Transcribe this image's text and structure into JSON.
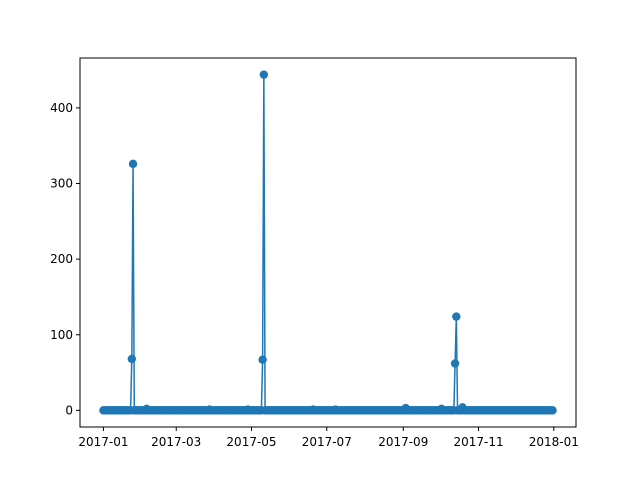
{
  "chart_data": {
    "type": "line",
    "title": "",
    "xlabel": "",
    "ylabel": "",
    "marker": "circle",
    "grid": false,
    "legend": "none",
    "colors": {
      "series": "#1f77b4",
      "axes": "#000000",
      "background": "#ffffff"
    },
    "xlim": [
      "2016-12-13",
      "2018-01-19"
    ],
    "ylim": [
      -22,
      466
    ],
    "x_ticks": [
      {
        "value": "2017-01-01",
        "label": "2017-01"
      },
      {
        "value": "2017-03-01",
        "label": "2017-03"
      },
      {
        "value": "2017-05-01",
        "label": "2017-05"
      },
      {
        "value": "2017-07-01",
        "label": "2017-07"
      },
      {
        "value": "2017-09-01",
        "label": "2017-09"
      },
      {
        "value": "2017-11-01",
        "label": "2017-11"
      },
      {
        "value": "2018-01-01",
        "label": "2018-01"
      }
    ],
    "y_ticks": [
      {
        "value": 0,
        "label": "0"
      },
      {
        "value": 100,
        "label": "100"
      },
      {
        "value": 200,
        "label": "200"
      },
      {
        "value": 300,
        "label": "300"
      },
      {
        "value": 400,
        "label": "400"
      }
    ],
    "series": [
      {
        "baseline": 0,
        "x_start": "2017-01-01",
        "x_end": "2017-12-31",
        "points": [
          {
            "x": "2017-01-01",
            "y": 0
          },
          {
            "x": "2017-01-23",
            "y": 0
          },
          {
            "x": "2017-01-24",
            "y": 68
          },
          {
            "x": "2017-01-25",
            "y": 326
          },
          {
            "x": "2017-01-26",
            "y": 0
          },
          {
            "x": "2017-02-05",
            "y": 2
          },
          {
            "x": "2017-03-28",
            "y": 1
          },
          {
            "x": "2017-04-28",
            "y": 1
          },
          {
            "x": "2017-05-09",
            "y": 0
          },
          {
            "x": "2017-05-10",
            "y": 67
          },
          {
            "x": "2017-05-11",
            "y": 444
          },
          {
            "x": "2017-05-12",
            "y": 0
          },
          {
            "x": "2017-06-20",
            "y": 1
          },
          {
            "x": "2017-07-08",
            "y": 1
          },
          {
            "x": "2017-09-03",
            "y": 3
          },
          {
            "x": "2017-10-02",
            "y": 2
          },
          {
            "x": "2017-10-12",
            "y": 0
          },
          {
            "x": "2017-10-13",
            "y": 62
          },
          {
            "x": "2017-10-14",
            "y": 124
          },
          {
            "x": "2017-10-15",
            "y": 0
          },
          {
            "x": "2017-10-19",
            "y": 4
          },
          {
            "x": "2017-12-31",
            "y": 0
          }
        ]
      }
    ]
  }
}
